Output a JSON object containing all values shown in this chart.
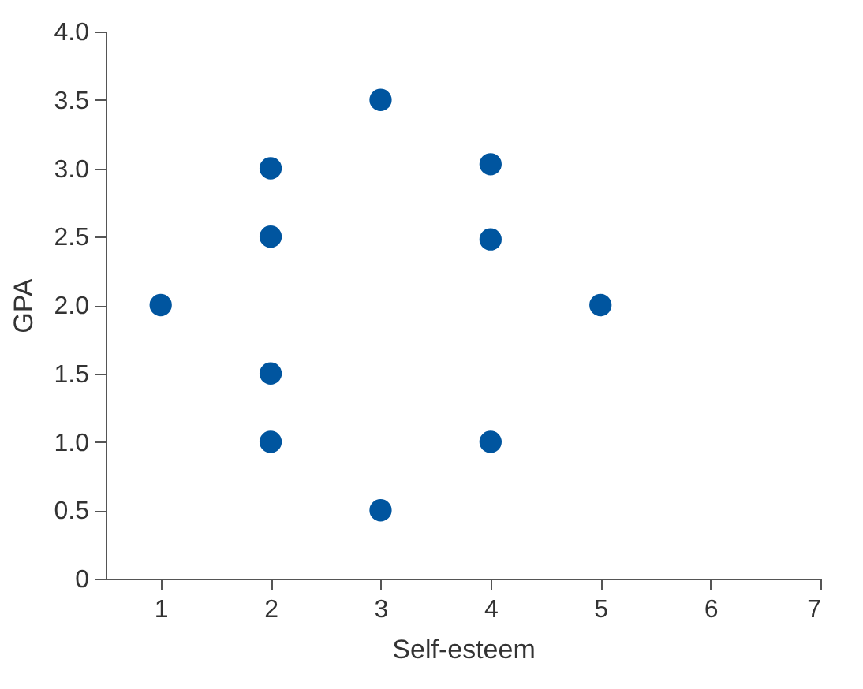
{
  "chart_data": {
    "type": "scatter",
    "xlabel": "Self-esteem",
    "ylabel": "GPA",
    "x": [
      1,
      2,
      2,
      2,
      2,
      3,
      3,
      4,
      4,
      4,
      5
    ],
    "series": [
      {
        "color": "#00559f",
        "values": [
          2,
          3,
          2.5,
          1.5,
          1,
          3.5,
          0.5,
          3.03,
          2.48,
          1,
          2
        ]
      }
    ],
    "xlim": [
      0.5,
      7
    ],
    "xticks": [
      1,
      2,
      3,
      4,
      5,
      6,
      7
    ],
    "ylim": [
      0,
      4
    ],
    "yticks": [
      0,
      {
        "value": 0.5,
        "label": "0.5"
      },
      {
        "value": 1,
        "label": "1.0"
      },
      {
        "value": 1.5,
        "label": "1.5"
      },
      {
        "value": 2,
        "label": "2.0"
      },
      {
        "value": 2.5,
        "label": "2.5"
      },
      {
        "value": 3,
        "label": "3.0"
      },
      {
        "value": 3.5,
        "label": "3.5"
      },
      {
        "value": 4,
        "label": "4.0"
      }
    ],
    "grid": false,
    "marker": "circle"
  }
}
